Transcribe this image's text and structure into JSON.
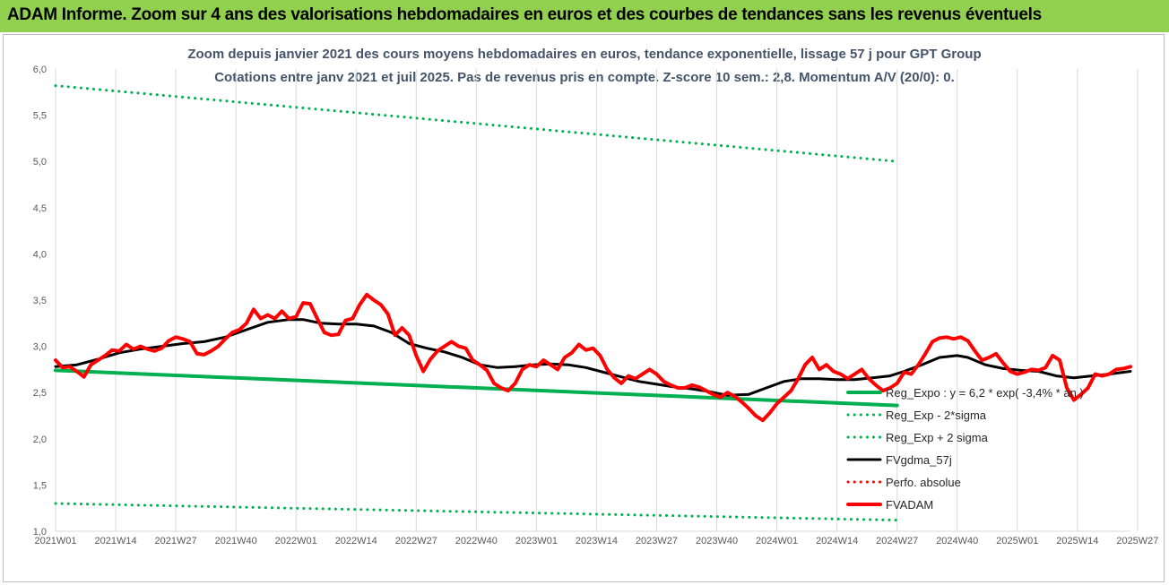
{
  "banner": {
    "title": "ADAM Informe. Zoom sur 4 ans des valorisations hebdomadaires en euros et des courbes de tendances sans les revenus éventuels",
    "color": "#92d050"
  },
  "chart_data": {
    "type": "line",
    "title": "Zoom depuis janvier 2021 des cours moyens hebdomadaires en euros, tendance exponentielle, lissage 57 j pour GPT Group",
    "subtitle": "Cotations entre janv 2021 et juil 2025. Pas de revenus pris en compte. Z-score 10 sem.: 2,8. Momentum A/V (20/0): 0.",
    "xlabel": "",
    "ylabel": "",
    "ylim": [
      1.0,
      6.0
    ],
    "ytick_labels": [
      "1,0",
      "1,5",
      "2,0",
      "2,5",
      "3,0",
      "3,5",
      "4,0",
      "4,5",
      "5,0",
      "5,5",
      "6,0"
    ],
    "xtick_labels": [
      "2021W01",
      "2021W14",
      "2021W27",
      "2021W40",
      "2022W01",
      "2022W14",
      "2022W27",
      "2022W40",
      "2023W01",
      "2023W14",
      "2023W27",
      "2023W40",
      "2024W01",
      "2024W14",
      "2024W27",
      "2024W40",
      "2025W01",
      "2025W14",
      "2025W27"
    ],
    "grid": "vertical",
    "legend_position": "bottom-right",
    "series": [
      {
        "name": "Reg_Expo : y = 6,2 * exp( -3,4% * an )",
        "color": "#00b050",
        "style": "solid-thick",
        "points": [
          [
            0,
            2.74
          ],
          [
            238,
            2.36
          ]
        ]
      },
      {
        "name": "Reg_Exp - 2*sigma",
        "color": "#00b050",
        "style": "dotted",
        "points": [
          [
            0,
            1.3
          ],
          [
            238,
            1.12
          ]
        ]
      },
      {
        "name": "Reg_Exp + 2 sigma",
        "color": "#00b050",
        "style": "dotted",
        "points": [
          [
            0,
            5.82
          ],
          [
            238,
            5.0
          ]
        ]
      },
      {
        "name": "FVgdma_57j",
        "color": "#000000",
        "style": "solid",
        "points": [
          [
            0,
            2.78
          ],
          [
            6,
            2.8
          ],
          [
            12,
            2.86
          ],
          [
            18,
            2.93
          ],
          [
            24,
            2.97
          ],
          [
            30,
            3.0
          ],
          [
            36,
            3.03
          ],
          [
            42,
            3.05
          ],
          [
            48,
            3.1
          ],
          [
            54,
            3.18
          ],
          [
            60,
            3.26
          ],
          [
            66,
            3.29
          ],
          [
            70,
            3.29
          ],
          [
            75,
            3.25
          ],
          [
            80,
            3.24
          ],
          [
            85,
            3.24
          ],
          [
            90,
            3.22
          ],
          [
            95,
            3.15
          ],
          [
            100,
            3.03
          ],
          [
            105,
            2.98
          ],
          [
            110,
            2.94
          ],
          [
            115,
            2.88
          ],
          [
            120,
            2.8
          ],
          [
            125,
            2.77
          ],
          [
            130,
            2.78
          ],
          [
            135,
            2.8
          ],
          [
            140,
            2.81
          ],
          [
            145,
            2.8
          ],
          [
            150,
            2.77
          ],
          [
            155,
            2.72
          ],
          [
            160,
            2.67
          ],
          [
            165,
            2.62
          ],
          [
            170,
            2.59
          ],
          [
            175,
            2.56
          ],
          [
            180,
            2.54
          ],
          [
            185,
            2.51
          ],
          [
            190,
            2.47
          ],
          [
            196,
            2.48
          ],
          [
            201,
            2.55
          ],
          [
            206,
            2.62
          ],
          [
            211,
            2.65
          ],
          [
            216,
            2.65
          ],
          [
            221,
            2.64
          ],
          [
            226,
            2.64
          ],
          [
            231,
            2.66
          ],
          [
            236,
            2.68
          ],
          [
            240,
            2.73
          ],
          [
            245,
            2.8
          ],
          [
            250,
            2.88
          ],
          [
            255,
            2.9
          ],
          [
            258,
            2.88
          ],
          [
            263,
            2.8
          ],
          [
            268,
            2.76
          ],
          [
            273,
            2.74
          ],
          [
            278,
            2.73
          ],
          [
            283,
            2.68
          ],
          [
            288,
            2.66
          ],
          [
            293,
            2.68
          ],
          [
            298,
            2.7
          ],
          [
            304,
            2.73
          ]
        ]
      },
      {
        "name": "Perfo. absolue",
        "color": "#ff0000",
        "style": "dotted",
        "points": []
      },
      {
        "name": "FVADAM",
        "color": "#ff0000",
        "style": "solid-thick",
        "points": [
          [
            0,
            2.85
          ],
          [
            2,
            2.77
          ],
          [
            4,
            2.78
          ],
          [
            6,
            2.73
          ],
          [
            8,
            2.67
          ],
          [
            10,
            2.8
          ],
          [
            12,
            2.85
          ],
          [
            14,
            2.9
          ],
          [
            16,
            2.96
          ],
          [
            18,
            2.95
          ],
          [
            20,
            3.02
          ],
          [
            22,
            2.97
          ],
          [
            24,
            3.0
          ],
          [
            26,
            2.97
          ],
          [
            28,
            2.95
          ],
          [
            30,
            2.98
          ],
          [
            32,
            3.06
          ],
          [
            34,
            3.1
          ],
          [
            36,
            3.08
          ],
          [
            38,
            3.05
          ],
          [
            40,
            2.92
          ],
          [
            42,
            2.91
          ],
          [
            44,
            2.95
          ],
          [
            46,
            3.0
          ],
          [
            48,
            3.08
          ],
          [
            50,
            3.15
          ],
          [
            52,
            3.18
          ],
          [
            54,
            3.25
          ],
          [
            56,
            3.4
          ],
          [
            58,
            3.3
          ],
          [
            60,
            3.34
          ],
          [
            62,
            3.3
          ],
          [
            64,
            3.38
          ],
          [
            66,
            3.3
          ],
          [
            68,
            3.32
          ],
          [
            70,
            3.47
          ],
          [
            72,
            3.46
          ],
          [
            74,
            3.3
          ],
          [
            76,
            3.15
          ],
          [
            78,
            3.12
          ],
          [
            80,
            3.13
          ],
          [
            82,
            3.28
          ],
          [
            84,
            3.3
          ],
          [
            86,
            3.45
          ],
          [
            88,
            3.56
          ],
          [
            90,
            3.5
          ],
          [
            92,
            3.45
          ],
          [
            94,
            3.35
          ],
          [
            96,
            3.12
          ],
          [
            98,
            3.2
          ],
          [
            100,
            3.12
          ],
          [
            102,
            2.9
          ],
          [
            104,
            2.73
          ],
          [
            106,
            2.86
          ],
          [
            108,
            2.95
          ],
          [
            110,
            3.0
          ],
          [
            112,
            3.05
          ],
          [
            114,
            3.0
          ],
          [
            116,
            2.98
          ],
          [
            118,
            2.85
          ],
          [
            120,
            2.8
          ],
          [
            122,
            2.74
          ],
          [
            124,
            2.6
          ],
          [
            126,
            2.55
          ],
          [
            128,
            2.52
          ],
          [
            130,
            2.6
          ],
          [
            132,
            2.75
          ],
          [
            134,
            2.8
          ],
          [
            136,
            2.78
          ],
          [
            138,
            2.85
          ],
          [
            140,
            2.8
          ],
          [
            142,
            2.75
          ],
          [
            144,
            2.88
          ],
          [
            146,
            2.93
          ],
          [
            148,
            3.02
          ],
          [
            150,
            2.96
          ],
          [
            152,
            2.98
          ],
          [
            154,
            2.9
          ],
          [
            156,
            2.75
          ],
          [
            158,
            2.66
          ],
          [
            160,
            2.6
          ],
          [
            162,
            2.68
          ],
          [
            164,
            2.65
          ],
          [
            166,
            2.7
          ],
          [
            168,
            2.75
          ],
          [
            170,
            2.7
          ],
          [
            172,
            2.62
          ],
          [
            174,
            2.58
          ],
          [
            176,
            2.55
          ],
          [
            178,
            2.55
          ],
          [
            180,
            2.58
          ],
          [
            182,
            2.56
          ],
          [
            184,
            2.52
          ],
          [
            186,
            2.48
          ],
          [
            188,
            2.45
          ],
          [
            190,
            2.5
          ],
          [
            192,
            2.46
          ],
          [
            194,
            2.4
          ],
          [
            196,
            2.33
          ],
          [
            198,
            2.25
          ],
          [
            200,
            2.2
          ],
          [
            202,
            2.28
          ],
          [
            204,
            2.38
          ],
          [
            206,
            2.45
          ],
          [
            208,
            2.52
          ],
          [
            210,
            2.65
          ],
          [
            212,
            2.8
          ],
          [
            214,
            2.88
          ],
          [
            216,
            2.75
          ],
          [
            218,
            2.8
          ],
          [
            220,
            2.73
          ],
          [
            222,
            2.7
          ],
          [
            224,
            2.65
          ],
          [
            226,
            2.7
          ],
          [
            228,
            2.75
          ],
          [
            230,
            2.65
          ],
          [
            232,
            2.58
          ],
          [
            234,
            2.52
          ],
          [
            236,
            2.55
          ],
          [
            238,
            2.6
          ],
          [
            240,
            2.72
          ],
          [
            242,
            2.7
          ],
          [
            244,
            2.8
          ],
          [
            246,
            2.92
          ],
          [
            248,
            3.05
          ],
          [
            250,
            3.09
          ],
          [
            252,
            3.1
          ],
          [
            254,
            3.08
          ],
          [
            256,
            3.1
          ],
          [
            258,
            3.06
          ],
          [
            260,
            2.95
          ],
          [
            262,
            2.85
          ],
          [
            264,
            2.88
          ],
          [
            266,
            2.92
          ],
          [
            268,
            2.82
          ],
          [
            270,
            2.73
          ],
          [
            272,
            2.7
          ],
          [
            274,
            2.72
          ],
          [
            276,
            2.75
          ],
          [
            278,
            2.74
          ],
          [
            280,
            2.77
          ],
          [
            282,
            2.9
          ],
          [
            284,
            2.85
          ],
          [
            286,
            2.55
          ],
          [
            288,
            2.42
          ],
          [
            290,
            2.48
          ],
          [
            292,
            2.55
          ],
          [
            294,
            2.7
          ],
          [
            296,
            2.68
          ],
          [
            298,
            2.7
          ],
          [
            300,
            2.75
          ],
          [
            302,
            2.76
          ],
          [
            304,
            2.78
          ]
        ]
      }
    ]
  }
}
